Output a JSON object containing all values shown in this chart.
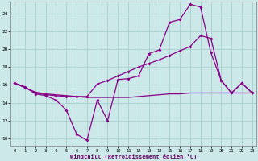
{
  "xlabel": "Windchill (Refroidissement éolien,°C)",
  "background_color": "#cce8e8",
  "grid_color": "#aad4d0",
  "line_color": "#880088",
  "spine_color": "#7a7a7a",
  "xlabel_color": "#660066",
  "xlim_min": -0.4,
  "xlim_max": 23.4,
  "ylim_min": 9.2,
  "ylim_max": 25.3,
  "xticks": [
    0,
    1,
    2,
    3,
    4,
    5,
    6,
    7,
    8,
    9,
    10,
    11,
    12,
    13,
    14,
    15,
    16,
    17,
    18,
    19,
    20,
    21,
    22,
    23
  ],
  "yticks": [
    10,
    12,
    14,
    16,
    18,
    20,
    22,
    24
  ],
  "hours": [
    0,
    1,
    2,
    3,
    4,
    5,
    6,
    7,
    8,
    9,
    10,
    11,
    12,
    13,
    14,
    15,
    16,
    17,
    18,
    19,
    20,
    21,
    22,
    23
  ],
  "line1_y": [
    16.2,
    15.8,
    15.0,
    14.8,
    14.3,
    13.2,
    10.5,
    9.8,
    14.3,
    12.0,
    16.6,
    16.7,
    17.0,
    19.5,
    19.9,
    23.0,
    23.3,
    25.0,
    24.7,
    19.6,
    16.5,
    15.1,
    16.2,
    15.1
  ],
  "line2_y": [
    16.2,
    15.7,
    15.2,
    15.0,
    14.9,
    14.8,
    14.7,
    14.6,
    14.6,
    14.6,
    14.6,
    14.6,
    14.7,
    14.8,
    14.9,
    15.0,
    15.0,
    15.1,
    15.1,
    15.1,
    15.1,
    15.1,
    15.1,
    15.1
  ],
  "line3_y": [
    16.2,
    15.7,
    15.1,
    14.9,
    14.8,
    14.7,
    14.7,
    14.7,
    16.1,
    16.5,
    17.0,
    17.5,
    18.0,
    18.4,
    18.8,
    19.3,
    19.8,
    20.3,
    21.5,
    21.2,
    16.5,
    15.1,
    16.2,
    15.1
  ]
}
